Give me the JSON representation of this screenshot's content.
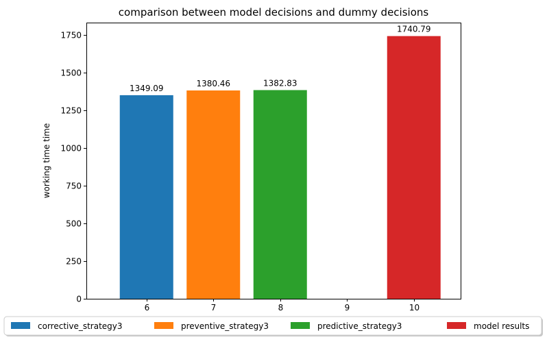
{
  "chart_data": {
    "type": "bar",
    "title": "comparison between model decisions and dummy decisions",
    "xlabel": "",
    "ylabel": "working time time",
    "xlim": [
      5.1,
      10.7
    ],
    "ylim": [
      0,
      1830
    ],
    "x_ticks": [
      6,
      7,
      8,
      9,
      10
    ],
    "y_ticks": [
      0,
      250,
      500,
      750,
      1000,
      1250,
      1500,
      1750
    ],
    "grid": false,
    "legend_position": "bottom-center, outside plot, single row",
    "series": [
      {
        "name": "corrective_strategy3",
        "x": 6,
        "value": 1349.09,
        "label": "1349.09",
        "color": "#1f77b4"
      },
      {
        "name": "preventive_strategy3",
        "x": 7,
        "value": 1380.46,
        "label": "1380.46",
        "color": "#ff7f0e"
      },
      {
        "name": "predictive_strategy3",
        "x": 8,
        "value": 1382.83,
        "label": "1382.83",
        "color": "#2ca02c"
      },
      {
        "name": "model results",
        "x": 10,
        "value": 1740.79,
        "label": "1740.79",
        "color": "#d62728"
      }
    ],
    "bar_width": 0.8
  }
}
